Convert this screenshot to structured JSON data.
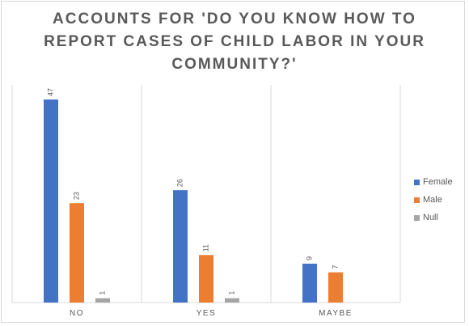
{
  "chart_data": {
    "type": "bar",
    "title_lines": [
      "ACCOUNTS FOR 'DO YOU KNOW HOW TO",
      "REPORT CASES OF CHILD LABOR IN YOUR",
      "COMMUNITY?'"
    ],
    "categories": [
      "NO",
      "YES",
      "MAYBE"
    ],
    "series": [
      {
        "name": "Female",
        "color": "#4472c4",
        "values": [
          47,
          26,
          9
        ]
      },
      {
        "name": "Male",
        "color": "#ed7d31",
        "values": [
          23,
          11,
          7
        ]
      },
      {
        "name": "Null",
        "color": "#a5a5a5",
        "values": [
          1,
          1,
          null
        ]
      }
    ],
    "ylim": [
      0,
      50
    ],
    "grid": false,
    "legend_position": "right"
  }
}
